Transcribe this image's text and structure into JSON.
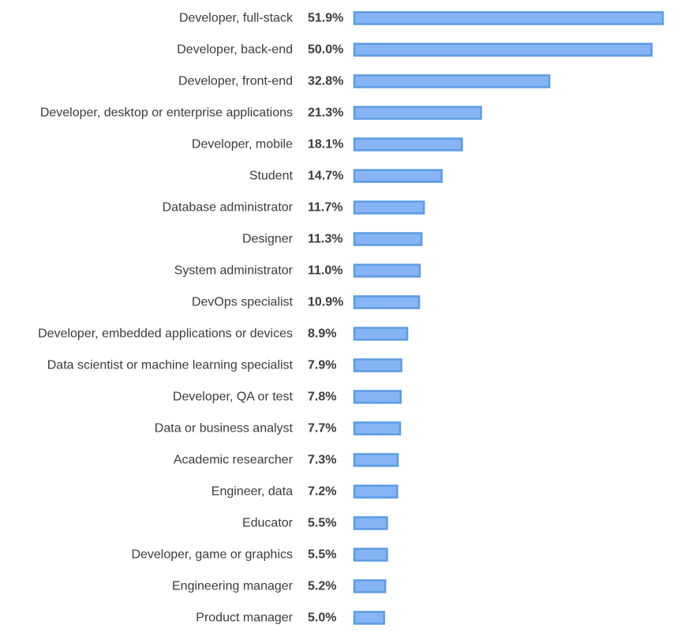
{
  "chart_data": {
    "type": "bar",
    "orientation": "horizontal",
    "categories": [
      "Developer, full-stack",
      "Developer, back-end",
      "Developer, front-end",
      "Developer, desktop or enterprise applications",
      "Developer, mobile",
      "Student",
      "Database administrator",
      "Designer",
      "System administrator",
      "DevOps specialist",
      "Developer, embedded applications or devices",
      "Data scientist or machine learning specialist",
      "Developer, QA or test",
      "Data or business analyst",
      "Academic researcher",
      "Engineer, data",
      "Educator",
      "Developer, game or graphics",
      "Engineering manager",
      "Product manager"
    ],
    "values": [
      51.9,
      50.0,
      32.8,
      21.3,
      18.1,
      14.7,
      11.7,
      11.3,
      11.0,
      10.9,
      8.9,
      7.9,
      7.8,
      7.7,
      7.3,
      7.2,
      5.5,
      5.5,
      5.2,
      5.0
    ],
    "value_labels": [
      "51.9%",
      "50.0%",
      "32.8%",
      "21.3%",
      "18.1%",
      "14.7%",
      "11.7%",
      "11.3%",
      "11.0%",
      "10.9%",
      "8.9%",
      "7.9%",
      "7.8%",
      "7.7%",
      "7.3%",
      "7.2%",
      "5.5%",
      "5.5%",
      "5.2%",
      "5.0%"
    ],
    "unit": "%",
    "title": "",
    "xlabel": "",
    "ylabel": "",
    "xlim": [
      0,
      51.9
    ],
    "grid": false,
    "legend": "none",
    "colors": {
      "bar_fill": "#86b4f5",
      "bar_stroke": "#5b9be3",
      "text": "#3b3b3b",
      "background": "#ffffff"
    }
  }
}
